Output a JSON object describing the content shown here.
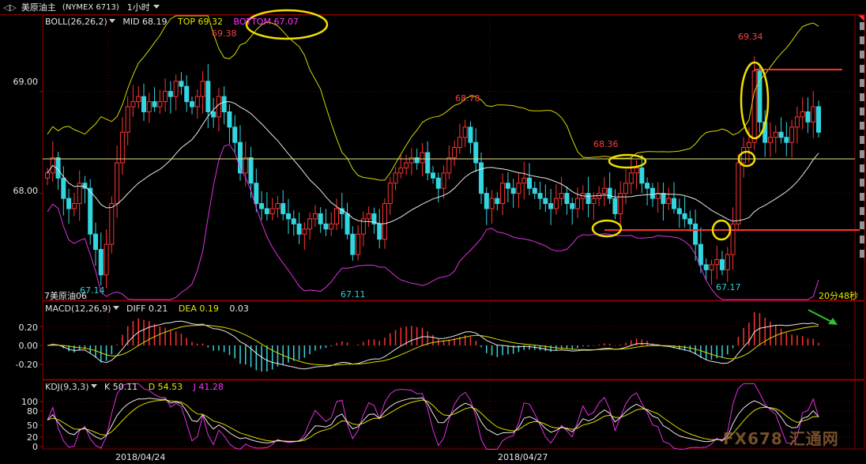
{
  "titlebar": {
    "nav": "◁▷",
    "name": "美原油主",
    "symbol": "(NYMEX 6713)",
    "timeframe": "1小时"
  },
  "boll": {
    "name": "BOLL(26,26,2)",
    "mid": "MID 68.19",
    "top": "TOP 69.32",
    "bottom": "BOTTOM 67.07"
  },
  "price_axis": {
    "labels": [
      "69.00",
      "68.00"
    ]
  },
  "price_labels": {
    "p1": "69.38",
    "p2": "68.78",
    "p3": "68.36",
    "p4": "69.34",
    "p5": "67.14",
    "p6": "67.11",
    "p7": "67.17"
  },
  "main_footer": {
    "left": "7美原油06",
    "right": "20分48秒"
  },
  "macd": {
    "name": "MACD(12,26,9)",
    "diff": "DIFF 0.21",
    "dea": "DEA 0.19",
    "macd": "0.03",
    "axis": [
      "0.20",
      "0.00",
      "-0.20"
    ]
  },
  "kdj": {
    "name": "KDJ(9,3,3)",
    "k": "K 50.11",
    "d": "D 54.53",
    "j": "J 41.28",
    "axis": [
      "100",
      "80",
      "50",
      "20",
      "0"
    ]
  },
  "dates": [
    "2018/04/24",
    "2018/04/27"
  ],
  "watermark": "FX678 汇通网",
  "colors": {
    "up": "#ff3333",
    "down": "#33d6e0",
    "boll_mid": "#e6e6e6",
    "boll_top": "#d9d900",
    "boll_bottom": "#e030e0",
    "grid": "#7a0000",
    "annot_ellipse": "#f0e000",
    "annot_line": "#ff3030"
  },
  "chart_data": {
    "type": "candlestick",
    "title": "美原油主 (NYMEX 6713) 1小时",
    "indicators": {
      "boll": {
        "period": 26,
        "mid": 68.19,
        "top": 69.32,
        "bottom": 67.07
      },
      "macd": {
        "diff": 0.21,
        "dea": 0.19,
        "macd": 0.03
      },
      "kdj": {
        "k": 50.11,
        "d": 54.53,
        "j": 41.28
      }
    },
    "marked_prices": [
      69.38,
      68.78,
      68.36,
      69.34,
      67.14,
      67.11,
      67.17
    ],
    "y_axis_ticks": [
      69.0,
      68.0
    ],
    "x_axis_dates": [
      "2018/04/24",
      "2018/04/27"
    ],
    "candles_close": [
      68.2,
      68.35,
      68.15,
      67.95,
      67.85,
      67.9,
      68.1,
      68.05,
      67.6,
      67.45,
      67.2,
      67.5,
      67.9,
      68.3,
      68.6,
      68.85,
      68.9,
      68.95,
      68.8,
      68.9,
      68.85,
      68.9,
      69.0,
      68.95,
      69.1,
      69.05,
      68.9,
      68.85,
      68.95,
      69.1,
      68.8,
      68.75,
      68.95,
      68.8,
      68.65,
      68.5,
      68.2,
      68.35,
      68.1,
      67.9,
      67.85,
      67.8,
      67.85,
      67.9,
      67.8,
      67.75,
      67.7,
      67.6,
      67.65,
      67.75,
      67.8,
      67.7,
      67.65,
      67.7,
      67.85,
      67.8,
      67.6,
      67.4,
      67.6,
      67.75,
      67.8,
      67.7,
      67.55,
      67.9,
      68.1,
      68.2,
      68.25,
      68.3,
      68.35,
      68.3,
      68.4,
      68.2,
      68.15,
      68.05,
      68.2,
      68.35,
      68.45,
      68.55,
      68.65,
      68.5,
      68.3,
      68.0,
      67.85,
      67.95,
      67.9,
      68.1,
      68.05,
      68.0,
      68.1,
      68.15,
      68.05,
      68.0,
      67.95,
      67.9,
      67.85,
      67.95,
      68.0,
      67.9,
      67.85,
      67.95,
      68.0,
      67.9,
      67.95,
      68.0,
      68.05,
      67.95,
      67.8,
      68.0,
      68.1,
      68.2,
      68.25,
      68.1,
      68.05,
      67.95,
      68.0,
      67.9,
      67.95,
      67.85,
      67.8,
      67.75,
      67.7,
      67.5,
      67.3,
      67.25,
      67.3,
      67.35,
      67.25,
      67.4,
      67.7,
      68.3,
      68.45,
      68.5,
      69.2,
      68.7,
      68.5,
      68.55,
      68.6,
      68.55,
      68.5,
      68.65,
      68.75,
      68.8,
      68.7,
      68.85,
      68.6
    ],
    "ylim_main": [
      66.95,
      69.75
    ],
    "macd_ylim": [
      -0.35,
      0.3
    ],
    "kdj_ylim": [
      0,
      120
    ]
  }
}
